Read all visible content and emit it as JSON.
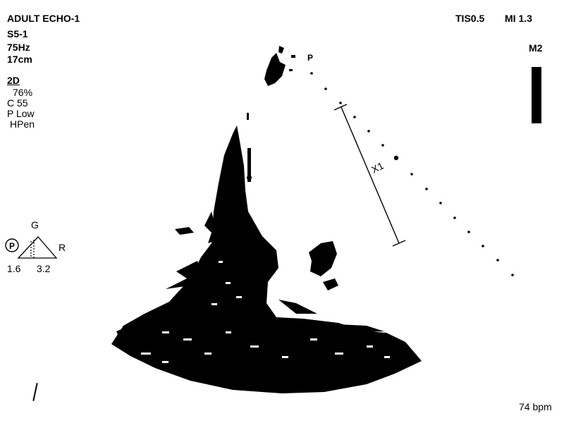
{
  "header": {
    "exam": "ADULT ECHO-1",
    "tis": "TIS0.5",
    "mi": "MI 1.3",
    "probe": "S5-1",
    "frame_rate": "75Hz",
    "depth": "17cm",
    "mode": "M2"
  },
  "params": {
    "mode": "2D",
    "gain": "76%",
    "compression": "C 55",
    "power": "P Low",
    "harmonic": "HPen"
  },
  "orientation": {
    "marker": "P",
    "top": "G",
    "right": "R",
    "left_value": "1.6",
    "right_value": "3.2"
  },
  "scan": {
    "apex_marker": "P",
    "caliper_label": "X1"
  },
  "status": {
    "heart_rate": "74 bpm"
  },
  "colors": {
    "background": "#ffffff",
    "foreground": "#000000"
  }
}
